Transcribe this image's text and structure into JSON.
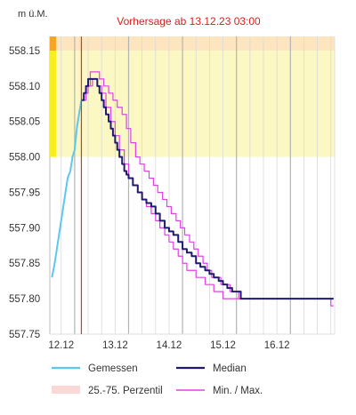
{
  "chart_data": {
    "type": "line",
    "y_unit_label": "m ü.M.",
    "forecast_label": "Vorhersage ab 13.12.23 03:00",
    "colors": {
      "measured": "#5bc8ee",
      "median": "#1f1a6e",
      "minmax": "#e040e6",
      "forecast_line": "#e03030",
      "band_yellow": "#fbf8c4",
      "band_orange": "#fde6bf",
      "level_bar_yellow": "#f7f01e",
      "level_bar_orange": "#f6a524",
      "percentile": "#fbd8d8",
      "grid": "#d9d9d9",
      "day_line": "#b3b3b3"
    },
    "ylim": [
      557.75,
      558.17
    ],
    "xlim": [
      11.54,
      16.82
    ],
    "yticks": [
      {
        "value": 558.15,
        "label": "558.15"
      },
      {
        "value": 558.1,
        "label": "558.10"
      },
      {
        "value": 558.05,
        "label": "558.05"
      },
      {
        "value": 558.0,
        "label": "558.00"
      },
      {
        "value": 557.95,
        "label": "557.95"
      },
      {
        "value": 557.9,
        "label": "557.90"
      },
      {
        "value": 557.85,
        "label": "557.85"
      },
      {
        "value": 557.8,
        "label": "557.80"
      },
      {
        "value": 557.75,
        "label": "557.75"
      }
    ],
    "xticks": [
      {
        "value": 11.75,
        "label": "12.12"
      },
      {
        "value": 12.75,
        "label": "13.12"
      },
      {
        "value": 13.75,
        "label": "14.12"
      },
      {
        "value": 14.75,
        "label": "15.12"
      },
      {
        "value": 15.75,
        "label": "16.12"
      }
    ],
    "day_boundaries": [
      12.0,
      13.0,
      14.0,
      15.0,
      16.0
    ],
    "forecast_start": 12.125,
    "bands": [
      {
        "from": 558.0,
        "to": 558.15,
        "level": "yellow"
      },
      {
        "from": 558.15,
        "to": 558.17,
        "level": "orange"
      }
    ],
    "series": [
      {
        "name": "Gemessen",
        "role": "measured",
        "x": [
          11.58,
          11.63,
          11.67,
          11.71,
          11.75,
          11.79,
          11.83,
          11.87,
          11.92,
          11.96,
          12.0,
          12.04,
          12.08,
          12.125
        ],
        "y": [
          557.83,
          557.85,
          557.87,
          557.89,
          557.91,
          557.93,
          557.95,
          557.97,
          557.98,
          558.0,
          558.01,
          558.04,
          558.06,
          558.08
        ]
      },
      {
        "name": "Median",
        "role": "median",
        "x": [
          12.125,
          12.17,
          12.21,
          12.25,
          12.29,
          12.33,
          12.38,
          12.42,
          12.46,
          12.5,
          12.54,
          12.58,
          12.63,
          12.67,
          12.71,
          12.75,
          12.79,
          12.83,
          12.88,
          12.92,
          12.96,
          13.0,
          13.08,
          13.17,
          13.25,
          13.33,
          13.42,
          13.5,
          13.58,
          13.67,
          13.75,
          13.83,
          13.92,
          14.0,
          14.08,
          14.17,
          14.25,
          14.33,
          14.42,
          14.5,
          14.58,
          14.67,
          14.75,
          14.83,
          14.92,
          15.0,
          15.08,
          15.17,
          15.25,
          15.33,
          15.42,
          15.5,
          15.58,
          15.67,
          15.75,
          15.83,
          15.92,
          16.0,
          16.17,
          16.33,
          16.5,
          16.67,
          16.8
        ],
        "y": [
          558.08,
          558.09,
          558.1,
          558.11,
          558.11,
          558.11,
          558.11,
          558.1,
          558.09,
          558.08,
          558.07,
          558.06,
          558.05,
          558.04,
          558.03,
          558.02,
          558.01,
          558.0,
          557.99,
          557.98,
          557.975,
          557.97,
          557.96,
          557.95,
          557.94,
          557.935,
          557.93,
          557.92,
          557.91,
          557.9,
          557.895,
          557.89,
          557.88,
          557.87,
          557.865,
          557.86,
          557.85,
          557.845,
          557.84,
          557.835,
          557.83,
          557.825,
          557.82,
          557.815,
          557.81,
          557.81,
          557.8,
          557.8,
          557.8,
          557.8,
          557.8,
          557.8,
          557.8,
          557.8,
          557.8,
          557.8,
          557.8,
          557.8,
          557.8,
          557.8,
          557.8,
          557.8,
          557.8
        ]
      },
      {
        "name": "Max.",
        "role": "max",
        "x": [
          12.125,
          12.21,
          12.29,
          12.38,
          12.46,
          12.54,
          12.63,
          12.71,
          12.79,
          12.88,
          12.96,
          13.04,
          13.13,
          13.21,
          13.29,
          13.38,
          13.46,
          13.54,
          13.63,
          13.71,
          13.79,
          13.88,
          13.96,
          14.04,
          14.13,
          14.21,
          14.29,
          14.38,
          14.46,
          14.54,
          14.63,
          14.71,
          14.79,
          14.88,
          14.96,
          15.04,
          15.13,
          15.21,
          15.29,
          15.38,
          15.46,
          15.54,
          15.63,
          15.71,
          15.79,
          15.88,
          15.96,
          16.04,
          16.13,
          16.21,
          16.29,
          16.38,
          16.46,
          16.54,
          16.63,
          16.71,
          16.8
        ],
        "y": [
          558.08,
          558.1,
          558.12,
          558.12,
          558.11,
          558.1,
          558.09,
          558.08,
          558.07,
          558.06,
          558.04,
          558.02,
          558.0,
          557.99,
          557.98,
          557.97,
          557.96,
          557.95,
          557.94,
          557.93,
          557.92,
          557.91,
          557.9,
          557.89,
          557.88,
          557.87,
          557.86,
          557.85,
          557.84,
          557.83,
          557.83,
          557.82,
          557.82,
          557.81,
          557.81,
          557.8,
          557.8,
          557.8,
          557.8,
          557.8,
          557.8,
          557.8,
          557.8,
          557.8,
          557.8,
          557.8,
          557.8,
          557.8,
          557.8,
          557.8,
          557.8,
          557.8,
          557.8,
          557.8,
          557.8,
          557.8,
          557.8
        ]
      },
      {
        "name": "Min.",
        "role": "min",
        "x": [
          12.125,
          12.17,
          12.25,
          12.33,
          12.42,
          12.5,
          12.58,
          12.67,
          12.75,
          12.83,
          12.92,
          13.0,
          13.08,
          13.17,
          13.25,
          13.33,
          13.42,
          13.5,
          13.58,
          13.67,
          13.75,
          13.83,
          13.92,
          14.0,
          14.08,
          14.17,
          14.25,
          14.33,
          14.42,
          14.5,
          14.58,
          14.67,
          14.75,
          14.83,
          14.92,
          15.0,
          15.08,
          15.17,
          15.25,
          15.33,
          15.42,
          15.5,
          15.58,
          15.67,
          15.75,
          15.83,
          15.92,
          16.0,
          16.08,
          16.17,
          16.25,
          16.33,
          16.42,
          16.5,
          16.58,
          16.67,
          16.75,
          16.8
        ],
        "y": [
          558.08,
          558.09,
          558.1,
          558.11,
          558.1,
          558.09,
          558.07,
          558.05,
          558.03,
          558.01,
          557.99,
          557.97,
          557.96,
          557.95,
          557.94,
          557.93,
          557.92,
          557.91,
          557.9,
          557.89,
          557.88,
          557.87,
          557.86,
          557.85,
          557.84,
          557.84,
          557.83,
          557.83,
          557.82,
          557.82,
          557.81,
          557.81,
          557.8,
          557.8,
          557.8,
          557.8,
          557.8,
          557.8,
          557.8,
          557.8,
          557.8,
          557.8,
          557.8,
          557.8,
          557.8,
          557.8,
          557.8,
          557.8,
          557.8,
          557.8,
          557.8,
          557.8,
          557.8,
          557.8,
          557.8,
          557.8,
          557.79,
          557.79
        ]
      }
    ],
    "legend": [
      {
        "label": "Gemessen",
        "kind": "line",
        "role": "measured"
      },
      {
        "label": "Median",
        "kind": "line",
        "role": "median"
      },
      {
        "label": "25.-75. Perzentil",
        "kind": "band",
        "role": "percentile"
      },
      {
        "label": "Min. / Max.",
        "kind": "line",
        "role": "minmax"
      }
    ]
  }
}
